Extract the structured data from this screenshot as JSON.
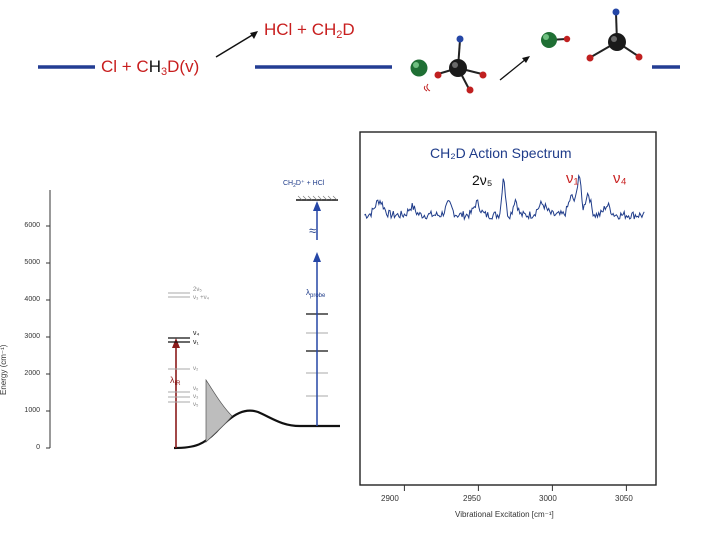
{
  "reaction": {
    "reactant_prefix": "Cl + C",
    "reactant_h": "H",
    "reactant_h_sub": "3",
    "reactant_suffix": "D(v)",
    "product_prefix": "HCl + CH",
    "product_sub": "2",
    "product_suffix": "D"
  },
  "energy_diagram": {
    "ylabel": "Energy (cm⁻¹)",
    "yticks": [
      "0",
      "1000",
      "2000",
      "3000",
      "4000",
      "5000",
      "6000"
    ],
    "ion_label_prefix": "CH",
    "ion_label_sub": "2",
    "ion_label_suffix": "D⁺ + HCl",
    "probe_label_prefix": "λ",
    "probe_label_sub": "probe",
    "ir_label_prefix": "λ",
    "ir_label_sub": "IR",
    "levels_grey_high": [
      "2ν₅",
      "ν₃ +ν₄"
    ],
    "levels_dark": [
      "ν₄",
      "ν₁"
    ],
    "level_v2": "ν₂",
    "levels_low": [
      "ν₆",
      "ν₃",
      "ν₅"
    ],
    "approx_symbol": "≈"
  },
  "chart_data": {
    "type": "line",
    "title": "CH₂D Action Spectrum",
    "xlabel": "Vibrational Excitation [cm⁻¹]",
    "ylabel": "",
    "xlim": [
      2870,
      3070
    ],
    "x_ticks": [
      "2900",
      "2950",
      "3000",
      "3050"
    ],
    "grid": false,
    "annotations": [
      {
        "text": "2ν₅",
        "x": 2883,
        "color": "#111111"
      },
      {
        "text": "ν₁",
        "x": 2970,
        "color": "#c81e1e"
      },
      {
        "text": "ν₄",
        "x": 3018,
        "color": "#c81e1e"
      }
    ],
    "series": [
      {
        "color": "#1f3c8a",
        "peaks": [
          {
            "x": 2883,
            "height": 0.12,
            "width": 4
          },
          {
            "x": 2905,
            "height": 0.07,
            "width": 3
          },
          {
            "x": 2930,
            "height": 0.09,
            "width": 3
          },
          {
            "x": 2949,
            "height": 0.1,
            "width": 3
          },
          {
            "x": 2967,
            "height": 0.32,
            "width": 1.6
          },
          {
            "x": 2975,
            "height": 0.13,
            "width": 2
          },
          {
            "x": 2993,
            "height": 0.09,
            "width": 4
          },
          {
            "x": 3013,
            "height": 0.15,
            "width": 3
          },
          {
            "x": 3018,
            "height": 0.33,
            "width": 1.8
          },
          {
            "x": 3024,
            "height": 0.18,
            "width": 2.5
          },
          {
            "x": 3037,
            "height": 0.08,
            "width": 3
          }
        ]
      }
    ]
  },
  "colors": {
    "accent_blue": "#1f3c8a",
    "accent_red": "#c81e1e",
    "line_navy": "#233d93"
  }
}
